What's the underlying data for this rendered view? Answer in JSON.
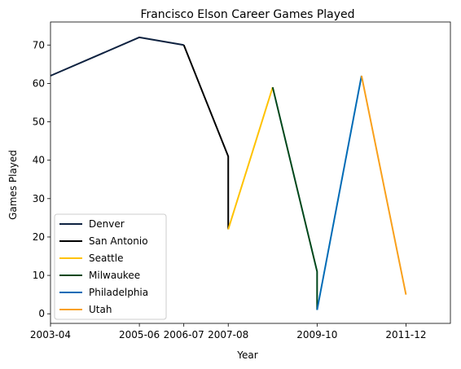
{
  "chart_data": {
    "type": "line",
    "title": "Francisco Elson Career Games Played",
    "xlabel": "Year",
    "ylabel": "Games Played",
    "ylim": [
      -2.5,
      76
    ],
    "yticks": [
      0,
      10,
      20,
      30,
      40,
      50,
      60,
      70
    ],
    "xlim": [
      "2003-04",
      "2012-13"
    ],
    "xticks": [
      "2003-04",
      "2005-06",
      "2006-07",
      "2007-08",
      "2009-10",
      "2011-12"
    ],
    "grid": false,
    "legend_position": "lower-left",
    "series": [
      {
        "name": "Denver",
        "color": "#0e2240",
        "points": [
          [
            "2003-04",
            62
          ],
          [
            "2005-06",
            72
          ],
          [
            "2006-07",
            70
          ]
        ]
      },
      {
        "name": "San Antonio",
        "color": "#000000",
        "points": [
          [
            "2006-07",
            70
          ],
          [
            "2007-08",
            41
          ],
          [
            "2007-08",
            22
          ]
        ]
      },
      {
        "name": "Seattle",
        "color": "#ffc200",
        "points": [
          [
            "2007-08",
            22
          ],
          [
            "2008-09",
            59
          ]
        ]
      },
      {
        "name": "Milwaukee",
        "color": "#00471b",
        "points": [
          [
            "2008-09",
            59
          ],
          [
            "2009-10",
            11
          ],
          [
            "2009-10",
            1
          ]
        ]
      },
      {
        "name": "Philadelphia",
        "color": "#006bb6",
        "points": [
          [
            "2009-10",
            1
          ],
          [
            "2010-11",
            62
          ]
        ]
      },
      {
        "name": "Utah",
        "color": "#f9a01b",
        "points": [
          [
            "2010-11",
            62
          ],
          [
            "2011-12",
            5
          ]
        ]
      }
    ]
  }
}
